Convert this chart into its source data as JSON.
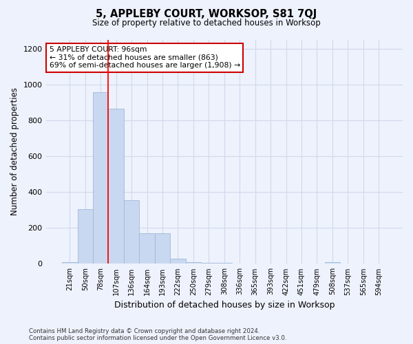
{
  "title": "5, APPLEBY COURT, WORKSOP, S81 7QJ",
  "subtitle": "Size of property relative to detached houses in Worksop",
  "xlabel": "Distribution of detached houses by size in Worksop",
  "ylabel": "Number of detached properties",
  "bar_labels": [
    "21sqm",
    "50sqm",
    "78sqm",
    "107sqm",
    "136sqm",
    "164sqm",
    "193sqm",
    "222sqm",
    "250sqm",
    "279sqm",
    "308sqm",
    "336sqm",
    "365sqm",
    "393sqm",
    "422sqm",
    "451sqm",
    "479sqm",
    "508sqm",
    "537sqm",
    "565sqm",
    "594sqm"
  ],
  "bar_values": [
    10,
    305,
    955,
    865,
    355,
    170,
    170,
    30,
    10,
    5,
    5,
    2,
    2,
    1,
    0,
    0,
    0,
    10,
    0,
    0,
    0
  ],
  "bar_color": "#c8d8f0",
  "bar_edge_color": "#a0b8d8",
  "red_line_x": 2.5,
  "property_label": "5 APPLEBY COURT: 96sqm",
  "annotation_line1": "← 31% of detached houses are smaller (863)",
  "annotation_line2": "69% of semi-detached houses are larger (1,908) →",
  "ylim": [
    0,
    1250
  ],
  "yticks": [
    0,
    200,
    400,
    600,
    800,
    1000,
    1200
  ],
  "annotation_box_color": "#ffffff",
  "annotation_box_edge": "#cc0000",
  "grid_color": "#d0d8ea",
  "footer": "Contains HM Land Registry data © Crown copyright and database right 2024.\nContains public sector information licensed under the Open Government Licence v3.0.",
  "background_color": "#eef2fc"
}
